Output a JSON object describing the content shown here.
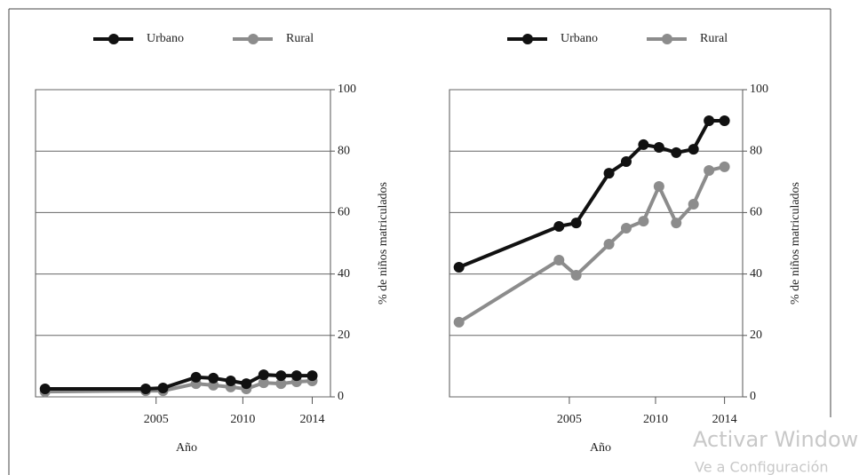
{
  "chart_data": [
    {
      "type": "line",
      "x": [
        1998.6,
        2004.4,
        2005.4,
        2007.3,
        2008.3,
        2009.3,
        2010.2,
        2011.2,
        2012.2,
        2013.1,
        2014
      ],
      "series": [
        {
          "name": "Urbano",
          "color": "#111111",
          "values": [
            2.6,
            2.6,
            2.9,
            6.4,
            6.1,
            5.2,
            4.3,
            7.2,
            6.9,
            6.9,
            6.9
          ]
        },
        {
          "name": "Rural",
          "color": "#8c8c8c",
          "values": [
            1.7,
            2,
            2,
            4.3,
            3.8,
            3.2,
            2.6,
            4.6,
            4.3,
            4.9,
            5.2
          ]
        }
      ],
      "xlim": [
        1998.05,
        2015.05
      ],
      "xticks": [
        2005,
        2010,
        2014
      ],
      "ylim": [
        0,
        100
      ],
      "yticks": [
        0,
        20,
        40,
        60,
        80,
        100
      ],
      "x_label": "Año",
      "y_label": "% de niños matriculados",
      "grid": true
    },
    {
      "type": "line",
      "x": [
        1998.6,
        2004.4,
        2005.4,
        2007.3,
        2008.3,
        2009.3,
        2010.2,
        2011.2,
        2012.2,
        2013.1,
        2014
      ],
      "series": [
        {
          "name": "Urbano",
          "color": "#111111",
          "values": [
            42.2,
            55.5,
            56.6,
            72.8,
            76.6,
            82.1,
            81.2,
            79.5,
            80.6,
            89.9,
            89.9
          ]
        },
        {
          "name": "Rural",
          "color": "#8c8c8c",
          "values": [
            24.3,
            44.5,
            39.6,
            49.7,
            54.9,
            57.2,
            68.5,
            56.6,
            62.7,
            73.7,
            74.9
          ]
        }
      ],
      "xlim": [
        1998.05,
        2015.05
      ],
      "xticks": [
        2005,
        2010,
        2014
      ],
      "ylim": [
        0,
        100
      ],
      "yticks": [
        0,
        20,
        40,
        60,
        80,
        100
      ],
      "x_label": "Año",
      "y_label": "% de niños matriculados",
      "grid": true
    }
  ],
  "watermark": {
    "title": "Activar Windows",
    "subtitle": "Ve a Configuración"
  }
}
